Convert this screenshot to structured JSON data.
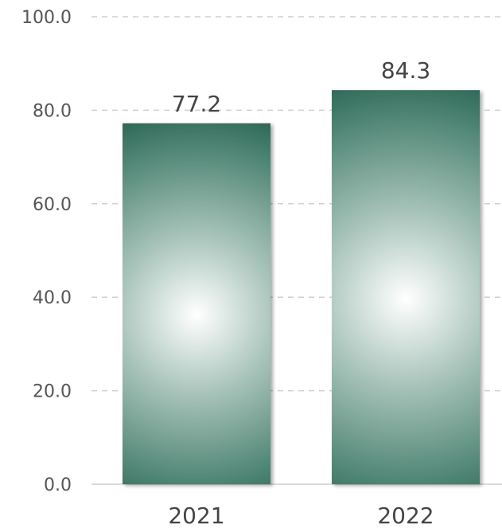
{
  "chart_data": {
    "type": "bar",
    "categories": [
      "2021",
      "2022"
    ],
    "values": [
      77.2,
      84.3
    ],
    "value_labels": [
      "77.2",
      "84.3"
    ],
    "title": "",
    "xlabel": "",
    "ylabel": "",
    "ylim": [
      0,
      100
    ],
    "yticks": [
      0,
      20,
      40,
      60,
      80,
      100
    ],
    "ytick_labels": [
      "0.0",
      "20.0",
      "40.0",
      "60.0",
      "80.0",
      "100.0"
    ],
    "grid": true,
    "legend": "none",
    "colors": {
      "bar_edge": "#1e5a4a",
      "bar_center": "#ffffff",
      "grid": "#cfcfcf",
      "text": "#555555"
    }
  }
}
